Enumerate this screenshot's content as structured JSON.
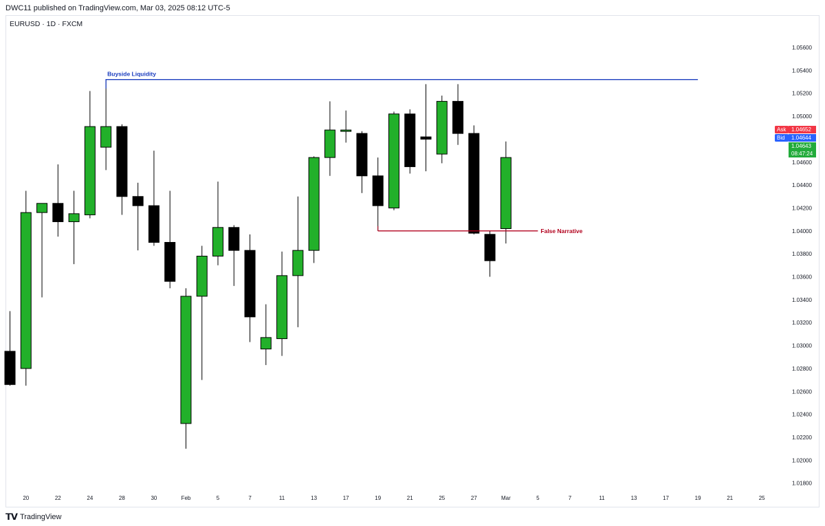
{
  "header": {
    "published": "DWC11 published on TradingView.com, Mar 03, 2025 08:12 UTC-5"
  },
  "symbol_line": "EURUSD · 1D · FXCM",
  "footer": {
    "brand": "TradingView"
  },
  "colors": {
    "bull": "#22b02a",
    "bear": "#000000",
    "buyside": "#1b3dbf",
    "false_narrative": "#b2001d",
    "ask": "#f23645",
    "bid": "#2962ff",
    "last": "#22ab3b"
  },
  "chart_data": {
    "type": "candlestick",
    "symbol": "EURUSD",
    "interval": "1D",
    "ylim": [
      1.0175,
      1.0575
    ],
    "yticks": [
      "1.05600",
      "1.05400",
      "1.05200",
      "1.05000",
      "1.04800",
      "1.04600",
      "1.04400",
      "1.04200",
      "1.04000",
      "1.03800",
      "1.03600",
      "1.03400",
      "1.03200",
      "1.03000",
      "1.02800",
      "1.02600",
      "1.02400",
      "1.02200",
      "1.02000",
      "1.01800"
    ],
    "xticks": [
      "20",
      "22",
      "24",
      "28",
      "30",
      "Feb",
      "5",
      "7",
      "11",
      "13",
      "17",
      "19",
      "21",
      "25",
      "27",
      "Mar",
      "5",
      "7",
      "11",
      "13",
      "17",
      "19",
      "21",
      "25"
    ],
    "candles": [
      {
        "o": 1.0295,
        "h": 1.033,
        "l": 1.0265,
        "c": 1.0266
      },
      {
        "o": 1.028,
        "h": 1.0435,
        "l": 1.0265,
        "c": 1.0416
      },
      {
        "o": 1.0416,
        "h": 1.0423,
        "l": 1.0342,
        "c": 1.0424
      },
      {
        "o": 1.0424,
        "h": 1.0458,
        "l": 1.0395,
        "c": 1.0408
      },
      {
        "o": 1.0408,
        "h": 1.0435,
        "l": 1.0371,
        "c": 1.0415
      },
      {
        "o": 1.0414,
        "h": 1.0522,
        "l": 1.0411,
        "c": 1.0491
      },
      {
        "o": 1.0473,
        "h": 1.0532,
        "l": 1.0453,
        "c": 1.0491
      },
      {
        "o": 1.0491,
        "h": 1.0493,
        "l": 1.0414,
        "c": 1.043
      },
      {
        "o": 1.043,
        "h": 1.0442,
        "l": 1.0383,
        "c": 1.0422
      },
      {
        "o": 1.0422,
        "h": 1.047,
        "l": 1.0387,
        "c": 1.039
      },
      {
        "o": 1.039,
        "h": 1.0435,
        "l": 1.035,
        "c": 1.0356
      },
      {
        "o": 1.0232,
        "h": 1.035,
        "l": 1.021,
        "c": 1.0343
      },
      {
        "o": 1.0343,
        "h": 1.0387,
        "l": 1.027,
        "c": 1.0378
      },
      {
        "o": 1.0378,
        "h": 1.0443,
        "l": 1.037,
        "c": 1.0403
      },
      {
        "o": 1.0403,
        "h": 1.0405,
        "l": 1.0352,
        "c": 1.0383
      },
      {
        "o": 1.0383,
        "h": 1.0397,
        "l": 1.0303,
        "c": 1.0325
      },
      {
        "o": 1.0297,
        "h": 1.0336,
        "l": 1.0283,
        "c": 1.0307
      },
      {
        "o": 1.0306,
        "h": 1.0382,
        "l": 1.0291,
        "c": 1.0361
      },
      {
        "o": 1.0361,
        "h": 1.043,
        "l": 1.0316,
        "c": 1.0383
      },
      {
        "o": 1.0383,
        "h": 1.0465,
        "l": 1.0372,
        "c": 1.0464
      },
      {
        "o": 1.0464,
        "h": 1.0513,
        "l": 1.0448,
        "c": 1.0488
      },
      {
        "o": 1.0488,
        "h": 1.0505,
        "l": 1.0477,
        "c": 1.0488
      },
      {
        "o": 1.0485,
        "h": 1.0487,
        "l": 1.0433,
        "c": 1.0448
      },
      {
        "o": 1.0448,
        "h": 1.0464,
        "l": 1.04,
        "c": 1.0422
      },
      {
        "o": 1.042,
        "h": 1.0504,
        "l": 1.0418,
        "c": 1.0502
      },
      {
        "o": 1.0502,
        "h": 1.0506,
        "l": 1.045,
        "c": 1.0456
      },
      {
        "o": 1.0482,
        "h": 1.0528,
        "l": 1.0452,
        "c": 1.048
      },
      {
        "o": 1.0467,
        "h": 1.0518,
        "l": 1.0459,
        "c": 1.0513
      },
      {
        "o": 1.0513,
        "h": 1.0528,
        "l": 1.0475,
        "c": 1.0485
      },
      {
        "o": 1.0485,
        "h": 1.0492,
        "l": 1.0397,
        "c": 1.0398
      },
      {
        "o": 1.0397,
        "h": 1.04,
        "l": 1.036,
        "c": 1.0374
      },
      {
        "o": 1.0402,
        "h": 1.0478,
        "l": 1.0389,
        "c": 1.0464
      }
    ],
    "annotations": [
      {
        "label": "Buyside Liquidity",
        "price": 1.0532,
        "from_candle": 6,
        "to_candle": 43,
        "color_key": "buyside"
      },
      {
        "label": "False Narrative",
        "price": 1.04,
        "from_candle": 23,
        "to_candle": 33,
        "color_key": "false_narrative"
      }
    ],
    "price_badges": [
      {
        "label": "Ask",
        "value": "1.04652",
        "color_key": "ask"
      },
      {
        "label": "Bid",
        "value": "1.04644",
        "color_key": "bid"
      },
      {
        "label": "",
        "value": "1.04643",
        "countdown": "08:47:24",
        "color_key": "last"
      }
    ]
  }
}
